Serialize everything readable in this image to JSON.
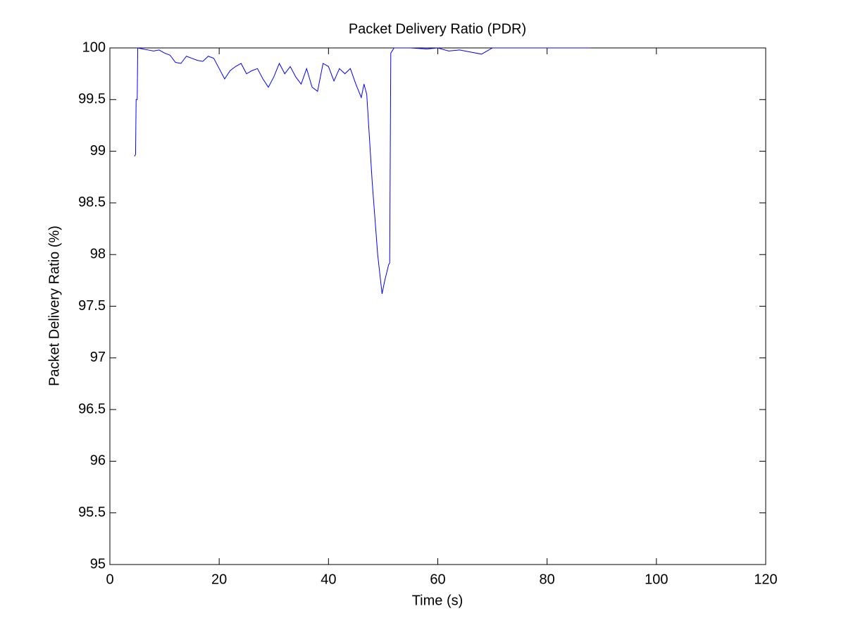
{
  "chart_data": {
    "type": "line",
    "title": "Packet Delivery Ratio (PDR)",
    "xlabel": "Time (s)",
    "ylabel": "Packet Delivery Ratio (%)",
    "x": [
      4.5,
      4.7,
      4.8,
      5.0,
      5.1,
      6,
      7,
      8,
      9,
      10,
      11,
      12,
      13,
      14,
      15,
      16,
      17,
      18,
      19,
      20,
      21,
      22,
      23,
      24,
      25,
      26,
      27,
      28,
      29,
      30,
      31,
      32,
      33,
      34,
      35,
      36,
      37,
      38,
      39,
      40,
      41,
      42,
      43,
      44,
      45,
      46,
      46.5,
      47,
      48,
      49,
      49.8,
      50.3,
      51,
      51.2,
      51.4,
      52,
      55,
      58,
      60,
      62,
      64,
      66,
      68,
      70,
      75,
      80,
      85,
      88
    ],
    "values": [
      98.95,
      98.97,
      99.5,
      99.5,
      100,
      99.99,
      99.98,
      99.97,
      99.98,
      99.95,
      99.93,
      99.86,
      99.85,
      99.92,
      99.9,
      99.88,
      99.87,
      99.92,
      99.9,
      99.8,
      99.7,
      99.78,
      99.82,
      99.85,
      99.75,
      99.78,
      99.8,
      99.7,
      99.62,
      99.72,
      99.85,
      99.75,
      99.82,
      99.72,
      99.65,
      99.8,
      99.62,
      99.58,
      99.85,
      99.82,
      99.68,
      99.8,
      99.75,
      99.8,
      99.65,
      99.52,
      99.65,
      99.55,
      98.7,
      98.0,
      97.62,
      97.75,
      97.9,
      97.92,
      99.95,
      100,
      100,
      99.99,
      100,
      99.97,
      99.98,
      99.96,
      99.94,
      100,
      100,
      100,
      100,
      100
    ],
    "color": "#0000ff",
    "xlim": [
      0,
      120
    ],
    "xticks": [
      0,
      20,
      40,
      60,
      80,
      100,
      120
    ],
    "ylim": [
      95,
      100
    ],
    "yticks": [
      95,
      95.5,
      96,
      96.5,
      97,
      97.5,
      98,
      98.5,
      99,
      99.5,
      100
    ]
  }
}
